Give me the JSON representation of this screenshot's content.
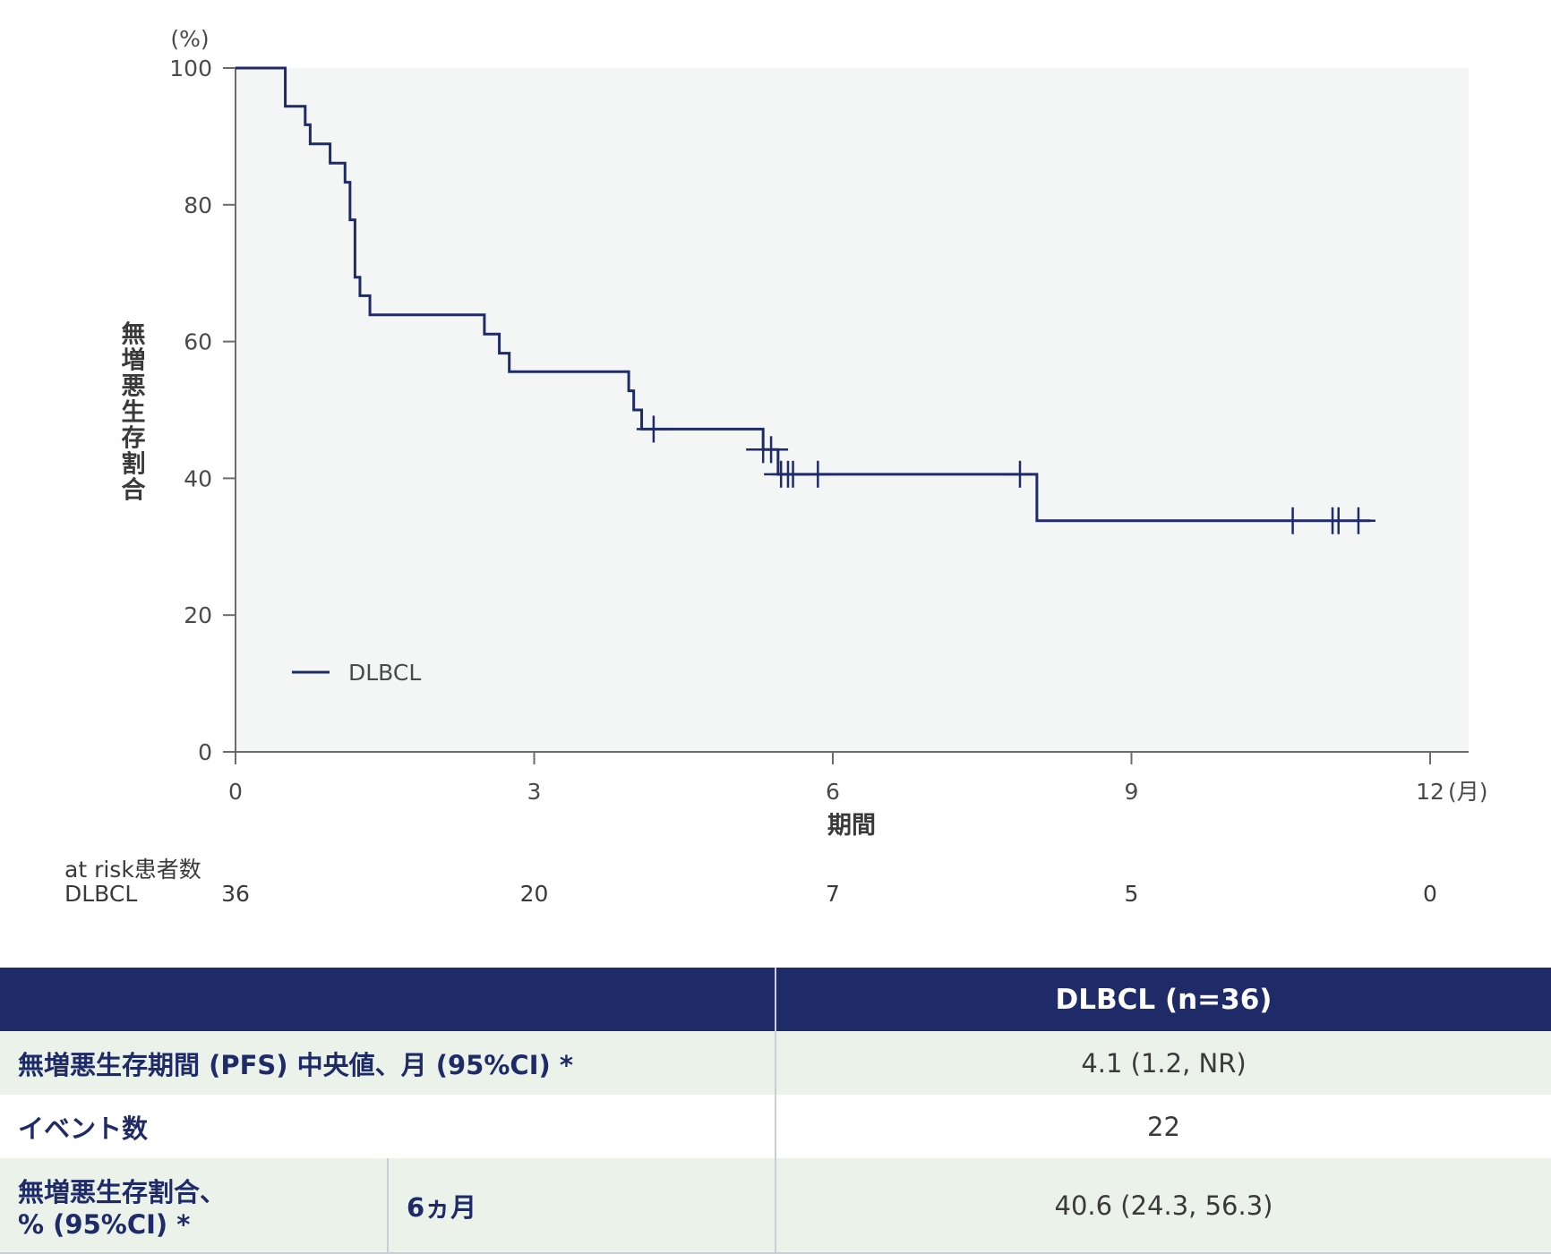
{
  "chart_data": {
    "type": "line",
    "subtype": "kaplan-meier step",
    "ylabel_unit": "(%)",
    "ylabel": "無増悪生存割合",
    "xlabel": "期間",
    "x_unit": "(月)",
    "xlim": [
      0,
      12
    ],
    "ylim": [
      0,
      100
    ],
    "xticks": [
      0,
      3,
      6,
      9,
      12
    ],
    "xtick_labels": [
      "0",
      "3",
      "6",
      "9",
      "12"
    ],
    "yticks": [
      0,
      20,
      40,
      60,
      80,
      100
    ],
    "series": [
      {
        "name": "DLBCL",
        "color": "#1f2a68",
        "steps": [
          [
            0,
            100
          ],
          [
            0.5,
            94.4
          ],
          [
            0.7,
            91.7
          ],
          [
            0.75,
            88.9
          ],
          [
            0.95,
            86.1
          ],
          [
            1.1,
            83.3
          ],
          [
            1.15,
            77.8
          ],
          [
            1.2,
            69.4
          ],
          [
            1.25,
            66.7
          ],
          [
            1.35,
            63.9
          ],
          [
            2.5,
            61.1
          ],
          [
            2.65,
            58.3
          ],
          [
            2.75,
            55.6
          ],
          [
            3.95,
            52.8
          ],
          [
            4.0,
            50.0
          ],
          [
            4.08,
            47.2
          ],
          [
            5.3,
            44.2
          ],
          [
            5.45,
            40.6
          ],
          [
            8.05,
            33.8
          ],
          [
            11.4,
            33.8
          ]
        ],
        "censored": [
          [
            4.2,
            47.2
          ],
          [
            5.3,
            44.2
          ],
          [
            5.38,
            44.2
          ],
          [
            5.48,
            40.6
          ],
          [
            5.55,
            40.6
          ],
          [
            5.6,
            40.6
          ],
          [
            5.85,
            40.6
          ],
          [
            7.88,
            40.6
          ],
          [
            10.62,
            33.8
          ],
          [
            11.02,
            33.8
          ],
          [
            11.08,
            33.8
          ],
          [
            11.28,
            33.8
          ]
        ]
      }
    ],
    "legend": {
      "position": "bottom-left",
      "entries": [
        "DLBCL"
      ]
    },
    "background": "#f4f6f6",
    "grid": false
  },
  "at_risk": {
    "title": "at risk患者数",
    "group": "DLBCL",
    "values": [
      "36",
      "20",
      "7",
      "5",
      "0"
    ],
    "times": [
      0,
      3,
      6,
      9,
      12
    ]
  },
  "table": {
    "header": "DLBCL (n=36)",
    "rows": [
      {
        "label": "無増悪生存期間 (PFS) 中央値、月 (95%CI) *",
        "value": "4.1 (1.2, NR)"
      },
      {
        "label": "イベント数",
        "value": "22"
      },
      {
        "label_line1": "無増悪生存割合、",
        "label_line2": "% (95%CI) *",
        "sublabel": "6ヵ月",
        "value": "40.6 (24.3, 56.3)"
      }
    ]
  }
}
